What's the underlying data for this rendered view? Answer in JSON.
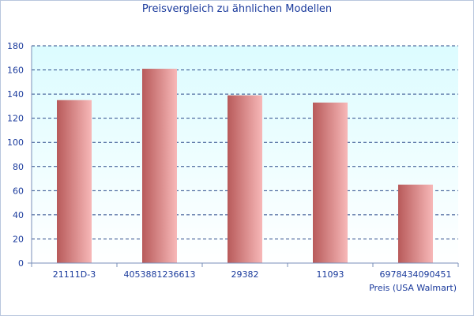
{
  "chart_data": {
    "type": "bar",
    "title": "Preisvergleich zu ähnlichen Modellen",
    "xlabel": "Preis (USA Walmart)",
    "ylabel": "",
    "categories": [
      "21111D-3",
      "4053881236613",
      "29382",
      "11093",
      "6978434090451"
    ],
    "values": [
      135,
      161,
      139,
      133,
      65
    ],
    "ylim": [
      0,
      180
    ],
    "yticks": [
      0,
      20,
      40,
      60,
      80,
      100,
      120,
      140,
      160,
      180
    ],
    "grid": true,
    "colors": {
      "plot_top": "#dcfcff",
      "plot_bottom": "#ffffff",
      "grid": "#2a4a8a",
      "axis": "#7a8fb8",
      "bar_dark": "#b85a5a",
      "bar_light": "#f7b8b8",
      "text": "#1a3a9c"
    }
  }
}
